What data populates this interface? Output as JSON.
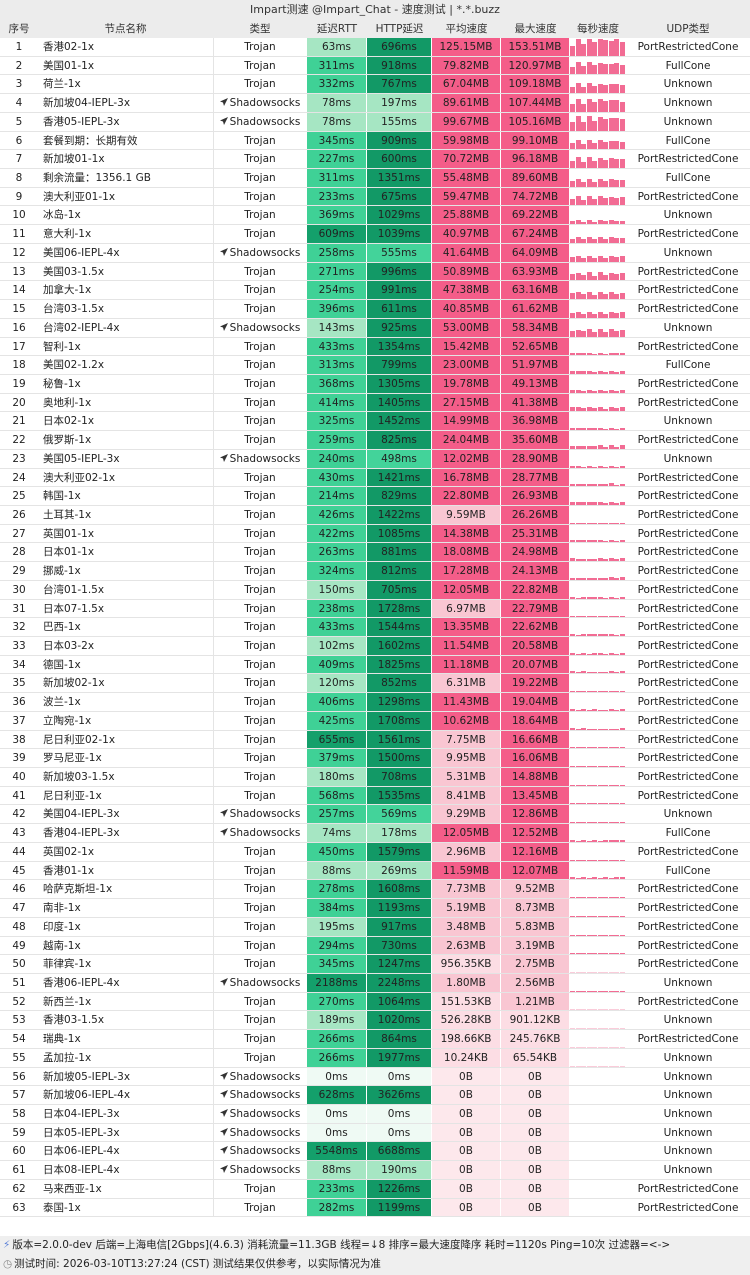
{
  "window": {
    "title": "Impart测速 @Impart_Chat - 速度测试 | *.*.buzz"
  },
  "columns": [
    "序号",
    "节点名称",
    "类型",
    "延迟RTT",
    "HTTP延迟",
    "平均速度",
    "最大速度",
    "每秒速度",
    "UDP类型"
  ],
  "colors": {
    "latency_dark": "#129966",
    "latency_mid": "#3fd196",
    "latency_light": "#a6e6c3",
    "speed_high": "#f45d89",
    "speed_low": "#fbdde4"
  },
  "rows": [
    [
      "1",
      "香港02-1x",
      "Trojan",
      "63ms",
      "696ms",
      "125.15MB",
      "153.51MB",
      "PortRestrictedCone"
    ],
    [
      "2",
      "美国01-1x",
      "Trojan",
      "311ms",
      "918ms",
      "79.82MB",
      "120.97MB",
      "FullCone"
    ],
    [
      "3",
      "荷兰-1x",
      "Trojan",
      "332ms",
      "767ms",
      "67.04MB",
      "109.18MB",
      "Unknown"
    ],
    [
      "4",
      "新加坡04-IEPL-3x",
      "Shadowsocks",
      "78ms",
      "197ms",
      "89.61MB",
      "107.44MB",
      "Unknown"
    ],
    [
      "5",
      "香港05-IEPL-3x",
      "Shadowsocks",
      "78ms",
      "155ms",
      "99.67MB",
      "105.16MB",
      "Unknown"
    ],
    [
      "6",
      "套餐到期：长期有效",
      "Trojan",
      "345ms",
      "909ms",
      "59.98MB",
      "99.10MB",
      "FullCone"
    ],
    [
      "7",
      "新加坡01-1x",
      "Trojan",
      "227ms",
      "600ms",
      "70.72MB",
      "96.18MB",
      "PortRestrictedCone"
    ],
    [
      "8",
      "剩余流量：1356.1 GB",
      "Trojan",
      "311ms",
      "1351ms",
      "55.48MB",
      "89.60MB",
      "FullCone"
    ],
    [
      "9",
      "澳大利亚01-1x",
      "Trojan",
      "233ms",
      "675ms",
      "59.47MB",
      "74.72MB",
      "PortRestrictedCone"
    ],
    [
      "10",
      "冰岛-1x",
      "Trojan",
      "369ms",
      "1029ms",
      "25.88MB",
      "69.22MB",
      "Unknown"
    ],
    [
      "11",
      "意大利-1x",
      "Trojan",
      "609ms",
      "1039ms",
      "40.97MB",
      "67.24MB",
      "PortRestrictedCone"
    ],
    [
      "12",
      "美国06-IEPL-4x",
      "Shadowsocks",
      "258ms",
      "555ms",
      "41.64MB",
      "64.09MB",
      "Unknown"
    ],
    [
      "13",
      "美国03-1.5x",
      "Trojan",
      "271ms",
      "996ms",
      "50.89MB",
      "63.93MB",
      "PortRestrictedCone"
    ],
    [
      "14",
      "加拿大-1x",
      "Trojan",
      "254ms",
      "991ms",
      "47.38MB",
      "63.16MB",
      "PortRestrictedCone"
    ],
    [
      "15",
      "台湾03-1.5x",
      "Trojan",
      "396ms",
      "611ms",
      "40.85MB",
      "61.62MB",
      "PortRestrictedCone"
    ],
    [
      "16",
      "台湾02-IEPL-4x",
      "Shadowsocks",
      "143ms",
      "925ms",
      "53.00MB",
      "58.34MB",
      "Unknown"
    ],
    [
      "17",
      "智利-1x",
      "Trojan",
      "433ms",
      "1354ms",
      "15.42MB",
      "52.65MB",
      "PortRestrictedCone"
    ],
    [
      "18",
      "美国02-1.2x",
      "Trojan",
      "313ms",
      "799ms",
      "23.00MB",
      "51.97MB",
      "FullCone"
    ],
    [
      "19",
      "秘鲁-1x",
      "Trojan",
      "368ms",
      "1305ms",
      "19.78MB",
      "49.13MB",
      "PortRestrictedCone"
    ],
    [
      "20",
      "奥地利-1x",
      "Trojan",
      "414ms",
      "1405ms",
      "27.15MB",
      "41.38MB",
      "PortRestrictedCone"
    ],
    [
      "21",
      "日本02-1x",
      "Trojan",
      "325ms",
      "1452ms",
      "14.99MB",
      "36.98MB",
      "Unknown"
    ],
    [
      "22",
      "俄罗斯-1x",
      "Trojan",
      "259ms",
      "825ms",
      "24.04MB",
      "35.60MB",
      "PortRestrictedCone"
    ],
    [
      "23",
      "美国05-IEPL-3x",
      "Shadowsocks",
      "240ms",
      "498ms",
      "12.02MB",
      "28.90MB",
      "Unknown"
    ],
    [
      "24",
      "澳大利亚02-1x",
      "Trojan",
      "430ms",
      "1421ms",
      "16.78MB",
      "28.77MB",
      "PortRestrictedCone"
    ],
    [
      "25",
      "韩国-1x",
      "Trojan",
      "214ms",
      "829ms",
      "22.80MB",
      "26.93MB",
      "PortRestrictedCone"
    ],
    [
      "26",
      "土耳其-1x",
      "Trojan",
      "426ms",
      "1422ms",
      "9.59MB",
      "26.26MB",
      "PortRestrictedCone"
    ],
    [
      "27",
      "英国01-1x",
      "Trojan",
      "422ms",
      "1085ms",
      "14.38MB",
      "25.31MB",
      "PortRestrictedCone"
    ],
    [
      "28",
      "日本01-1x",
      "Trojan",
      "263ms",
      "881ms",
      "18.08MB",
      "24.98MB",
      "PortRestrictedCone"
    ],
    [
      "29",
      "挪威-1x",
      "Trojan",
      "324ms",
      "812ms",
      "17.28MB",
      "24.13MB",
      "PortRestrictedCone"
    ],
    [
      "30",
      "台湾01-1.5x",
      "Trojan",
      "150ms",
      "705ms",
      "12.05MB",
      "22.82MB",
      "PortRestrictedCone"
    ],
    [
      "31",
      "日本07-1.5x",
      "Trojan",
      "238ms",
      "1728ms",
      "6.97MB",
      "22.79MB",
      "PortRestrictedCone"
    ],
    [
      "32",
      "巴西-1x",
      "Trojan",
      "433ms",
      "1544ms",
      "13.35MB",
      "22.62MB",
      "PortRestrictedCone"
    ],
    [
      "33",
      "日本03-2x",
      "Trojan",
      "102ms",
      "1602ms",
      "11.54MB",
      "20.58MB",
      "PortRestrictedCone"
    ],
    [
      "34",
      "德国-1x",
      "Trojan",
      "409ms",
      "1825ms",
      "11.18MB",
      "20.07MB",
      "PortRestrictedCone"
    ],
    [
      "35",
      "新加坡02-1x",
      "Trojan",
      "120ms",
      "852ms",
      "6.31MB",
      "19.22MB",
      "PortRestrictedCone"
    ],
    [
      "36",
      "波兰-1x",
      "Trojan",
      "406ms",
      "1298ms",
      "11.43MB",
      "19.04MB",
      "PortRestrictedCone"
    ],
    [
      "37",
      "立陶宛-1x",
      "Trojan",
      "425ms",
      "1708ms",
      "10.62MB",
      "18.64MB",
      "PortRestrictedCone"
    ],
    [
      "38",
      "尼日利亚02-1x",
      "Trojan",
      "655ms",
      "1561ms",
      "7.75MB",
      "16.66MB",
      "PortRestrictedCone"
    ],
    [
      "39",
      "罗马尼亚-1x",
      "Trojan",
      "379ms",
      "1500ms",
      "9.95MB",
      "16.06MB",
      "PortRestrictedCone"
    ],
    [
      "40",
      "新加坡03-1.5x",
      "Trojan",
      "180ms",
      "708ms",
      "5.31MB",
      "14.88MB",
      "PortRestrictedCone"
    ],
    [
      "41",
      "尼日利亚-1x",
      "Trojan",
      "568ms",
      "1535ms",
      "8.41MB",
      "13.45MB",
      "PortRestrictedCone"
    ],
    [
      "42",
      "美国04-IEPL-3x",
      "Shadowsocks",
      "257ms",
      "569ms",
      "9.29MB",
      "12.86MB",
      "Unknown"
    ],
    [
      "43",
      "香港04-IEPL-3x",
      "Shadowsocks",
      "74ms",
      "178ms",
      "12.05MB",
      "12.52MB",
      "FullCone"
    ],
    [
      "44",
      "英国02-1x",
      "Trojan",
      "450ms",
      "1579ms",
      "2.96MB",
      "12.16MB",
      "PortRestrictedCone"
    ],
    [
      "45",
      "香港01-1x",
      "Trojan",
      "88ms",
      "269ms",
      "11.59MB",
      "12.07MB",
      "FullCone"
    ],
    [
      "46",
      "哈萨克斯坦-1x",
      "Trojan",
      "278ms",
      "1608ms",
      "7.73MB",
      "9.52MB",
      "PortRestrictedCone"
    ],
    [
      "47",
      "南非-1x",
      "Trojan",
      "384ms",
      "1193ms",
      "5.19MB",
      "8.73MB",
      "PortRestrictedCone"
    ],
    [
      "48",
      "印度-1x",
      "Trojan",
      "195ms",
      "917ms",
      "3.48MB",
      "5.83MB",
      "PortRestrictedCone"
    ],
    [
      "49",
      "越南-1x",
      "Trojan",
      "294ms",
      "730ms",
      "2.63MB",
      "3.19MB",
      "PortRestrictedCone"
    ],
    [
      "50",
      "菲律宾-1x",
      "Trojan",
      "345ms",
      "1247ms",
      "956.35KB",
      "2.75MB",
      "PortRestrictedCone"
    ],
    [
      "51",
      "香港06-IEPL-4x",
      "Shadowsocks",
      "2188ms",
      "2248ms",
      "1.80MB",
      "2.56MB",
      "Unknown"
    ],
    [
      "52",
      "新西兰-1x",
      "Trojan",
      "270ms",
      "1064ms",
      "151.53KB",
      "1.21MB",
      "PortRestrictedCone"
    ],
    [
      "53",
      "香港03-1.5x",
      "Trojan",
      "189ms",
      "1020ms",
      "526.28KB",
      "901.12KB",
      "Unknown"
    ],
    [
      "54",
      "瑞典-1x",
      "Trojan",
      "266ms",
      "864ms",
      "198.66KB",
      "245.76KB",
      "PortRestrictedCone"
    ],
    [
      "55",
      "孟加拉-1x",
      "Trojan",
      "266ms",
      "1977ms",
      "10.24KB",
      "65.54KB",
      "Unknown"
    ],
    [
      "56",
      "新加坡05-IEPL-3x",
      "Shadowsocks",
      "0ms",
      "0ms",
      "0B",
      "0B",
      "Unknown"
    ],
    [
      "57",
      "新加坡06-IEPL-4x",
      "Shadowsocks",
      "628ms",
      "3626ms",
      "0B",
      "0B",
      "Unknown"
    ],
    [
      "58",
      "日本04-IEPL-3x",
      "Shadowsocks",
      "0ms",
      "0ms",
      "0B",
      "0B",
      "Unknown"
    ],
    [
      "59",
      "日本05-IEPL-3x",
      "Shadowsocks",
      "0ms",
      "0ms",
      "0B",
      "0B",
      "Unknown"
    ],
    [
      "60",
      "日本06-IEPL-4x",
      "Shadowsocks",
      "5548ms",
      "6688ms",
      "0B",
      "0B",
      "Unknown"
    ],
    [
      "61",
      "日本08-IEPL-4x",
      "Shadowsocks",
      "88ms",
      "190ms",
      "0B",
      "0B",
      "Unknown"
    ],
    [
      "62",
      "马来西亚-1x",
      "Trojan",
      "233ms",
      "1226ms",
      "0B",
      "0B",
      "PortRestrictedCone"
    ],
    [
      "63",
      "泰国-1x",
      "Trojan",
      "282ms",
      "1199ms",
      "0B",
      "0B",
      "PortRestrictedCone"
    ]
  ],
  "footer": {
    "line1": "版本=2.0.0-dev  后端=上海电信[2Gbps](4.6.3) 消耗流量=11.3GB  线程=↓8  排序=最大速度降序  耗时=1120s  Ping=10次  过滤器=<->",
    "line2": "测试时间: 2026-03-10T13:27:24 (CST)  测试结果仅供参考，以实际情况为准",
    "icon1": "lightning-icon",
    "icon2": "clock-icon"
  }
}
